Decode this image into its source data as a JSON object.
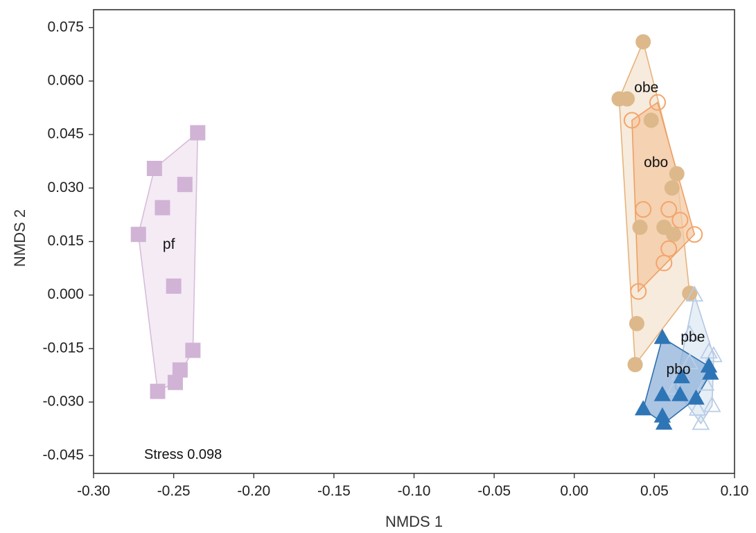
{
  "chart_data": {
    "type": "scatter",
    "title": "",
    "xlabel": "NMDS 1",
    "ylabel": "NMDS 2",
    "xlim": [
      -0.3,
      0.1
    ],
    "ylim": [
      -0.05,
      0.08
    ],
    "xticks": [
      "-0.30",
      "-0.25",
      "-0.20",
      "-0.15",
      "-0.10",
      "-0.05",
      "0.00",
      "0.05",
      "0.10"
    ],
    "xtick_values": [
      -0.3,
      -0.25,
      -0.2,
      -0.15,
      -0.1,
      -0.05,
      0.0,
      0.05,
      0.1
    ],
    "yticks": [
      "0.075",
      "0.060",
      "0.045",
      "0.030",
      "0.015",
      "0.000",
      "-0.015",
      "-0.030",
      "-0.045"
    ],
    "ytick_values": [
      0.075,
      0.06,
      0.045,
      0.03,
      0.015,
      0.0,
      -0.015,
      -0.03,
      -0.045
    ],
    "grid": false,
    "annotation": "Stress 0.098",
    "series": [
      {
        "name": "pf",
        "marker": "square-filled",
        "color": "#d1b3d6",
        "hull_fill": "#f2e8f3",
        "hull_stroke": "#d6bdd9",
        "label_pos": [
          -0.253,
          0.014
        ],
        "points": [
          [
            -0.235,
            0.0455
          ],
          [
            -0.262,
            0.0355
          ],
          [
            -0.243,
            0.031
          ],
          [
            -0.257,
            0.0245
          ],
          [
            -0.272,
            0.017
          ],
          [
            -0.25,
            0.0025
          ],
          [
            -0.238,
            -0.0155
          ],
          [
            -0.246,
            -0.021
          ],
          [
            -0.249,
            -0.0245
          ],
          [
            -0.26,
            -0.027
          ]
        ]
      },
      {
        "name": "obe",
        "marker": "circle-filled",
        "color": "#ddb88a",
        "hull_fill": "#f4e7d6",
        "hull_stroke": "#e8b27c",
        "label_pos": [
          0.045,
          0.058
        ],
        "points": [
          [
            0.043,
            0.071
          ],
          [
            0.028,
            0.055
          ],
          [
            0.033,
            0.055
          ],
          [
            0.048,
            0.049
          ],
          [
            0.064,
            0.034
          ],
          [
            0.061,
            0.03
          ],
          [
            0.041,
            0.019
          ],
          [
            0.056,
            0.019
          ],
          [
            0.062,
            0.017
          ],
          [
            0.072,
            0.0005
          ],
          [
            0.039,
            -0.008
          ],
          [
            0.038,
            -0.0195
          ]
        ]
      },
      {
        "name": "obo",
        "marker": "circle-open",
        "color": "#f4a46a",
        "hull_fill": "#f3c9a4",
        "hull_stroke": "#ef9f62",
        "label_pos": [
          0.051,
          0.037
        ],
        "points": [
          [
            0.052,
            0.054
          ],
          [
            0.036,
            0.049
          ],
          [
            0.043,
            0.024
          ],
          [
            0.059,
            0.024
          ],
          [
            0.066,
            0.021
          ],
          [
            0.075,
            0.017
          ],
          [
            0.059,
            0.013
          ],
          [
            0.056,
            0.009
          ],
          [
            0.04,
            0.001
          ]
        ]
      },
      {
        "name": "pbe",
        "marker": "triangle-open",
        "color": "#b9cde6",
        "hull_fill": "#e2ebf5",
        "hull_stroke": "#b3c7e2",
        "label_pos": [
          0.074,
          -0.012
        ],
        "points": [
          [
            0.075,
            0.0
          ],
          [
            0.072,
            -0.011
          ],
          [
            0.084,
            -0.016
          ],
          [
            0.087,
            -0.017
          ],
          [
            0.072,
            -0.019
          ],
          [
            0.066,
            -0.022
          ],
          [
            0.082,
            -0.025
          ],
          [
            0.063,
            -0.026
          ],
          [
            0.086,
            -0.031
          ],
          [
            0.079,
            -0.036
          ],
          [
            0.077,
            -0.032
          ]
        ]
      },
      {
        "name": "pbo",
        "marker": "triangle-filled",
        "color": "#2e75b6",
        "hull_fill": "#8fb1d9",
        "hull_stroke": "#2e6fb0",
        "label_pos": [
          0.065,
          -0.021
        ],
        "points": [
          [
            0.055,
            -0.012
          ],
          [
            0.084,
            -0.02
          ],
          [
            0.085,
            -0.022
          ],
          [
            0.067,
            -0.023
          ],
          [
            0.055,
            -0.028
          ],
          [
            0.066,
            -0.028
          ],
          [
            0.076,
            -0.029
          ],
          [
            0.043,
            -0.032
          ],
          [
            0.055,
            -0.034
          ],
          [
            0.056,
            -0.036
          ]
        ]
      }
    ]
  }
}
